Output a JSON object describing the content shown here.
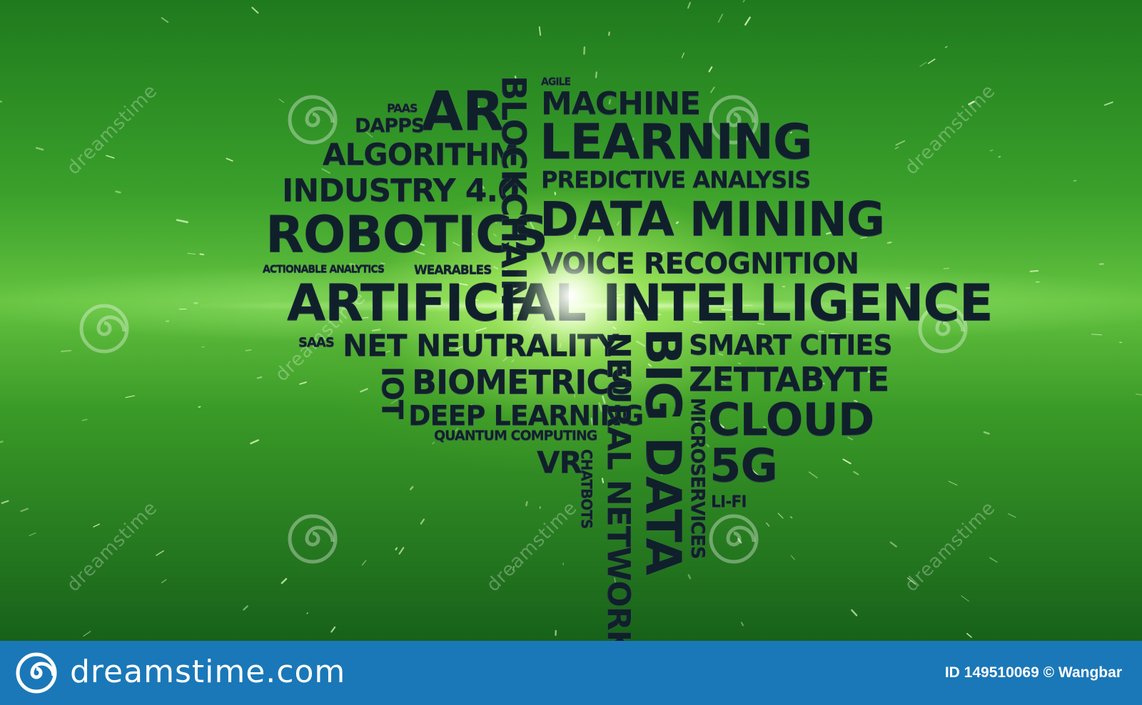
{
  "watermark": {
    "brand_text": "dreamstime",
    "icon": "spiral-icon"
  },
  "word_cloud": {
    "paas": "PAAS",
    "ar": "AR",
    "dapps": "DAPPS",
    "algorithm": "ALGORITHM",
    "industry": "INDUSTRY 4.0",
    "robotics": "ROBOTICS",
    "actionable": "ACTIONABLE ANALYTICS",
    "wearables": "WEARABLES",
    "blockchain": "BLOCKCHAIN",
    "agile": "AGILE",
    "machine": "MACHINE",
    "learning": "LEARNING",
    "predictive": "PREDICTIVE ANALYSIS",
    "data_mining": "DATA MINING",
    "voice": "VOICE RECOGNITION",
    "ai": "ARTIFICIAL INTELLIGENCE",
    "saas": "SAAS",
    "net_neutrality": "NET NEUTRALITY",
    "iot": "IOT",
    "biometrics": "BIOMETRICS",
    "deep_learning": "DEEP LEARNING",
    "quantum": "QUANTUM COMPUTING",
    "vr": "VR",
    "chatbots": "CHATBOTS",
    "neural_network": "NEURAL NETWORK",
    "big_data": "BIG DATA",
    "smart_cities": "SMART CITIES",
    "zettabyte": "ZETTABYTE",
    "microservices": "MICROSERVICES",
    "cloud": "CLOUD",
    "five_g": "5G",
    "lifi": "LI-FI"
  },
  "footer": {
    "site": "dreamstime.com",
    "image_id": "ID 149510069 © Wangbar",
    "background_color": "#1a78b8",
    "logo_icon": "spiral-logo-icon"
  },
  "colors": {
    "background": "#3aa02b",
    "text": "#10202a"
  }
}
